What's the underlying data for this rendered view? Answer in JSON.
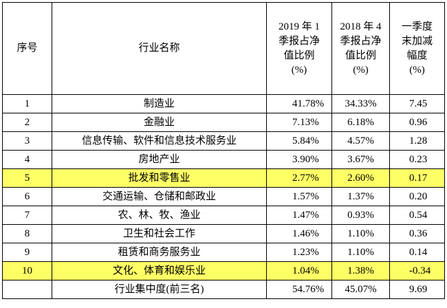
{
  "headers": {
    "seq": "序号",
    "industry": "行业名称",
    "q1_2019": [
      "2019 年 1",
      "季报占净",
      "值比例",
      "(%)"
    ],
    "q4_2018": [
      "2018 年 4",
      "季报占净",
      "值比例",
      "(%)"
    ],
    "change": [
      "一季度",
      "末加减",
      "幅度",
      "(%)"
    ]
  },
  "rows": [
    {
      "seq": "1",
      "industry": "制造业",
      "q1_2019": "41.78%",
      "q4_2018": "34.33%",
      "change": "7.45",
      "highlight": false
    },
    {
      "seq": "2",
      "industry": "金融业",
      "q1_2019": "7.13%",
      "q4_2018": "6.18%",
      "change": "0.96",
      "highlight": false
    },
    {
      "seq": "3",
      "industry": "信息传输、软件和信息技术服务业",
      "q1_2019": "5.84%",
      "q4_2018": "4.57%",
      "change": "1.28",
      "highlight": false
    },
    {
      "seq": "4",
      "industry": "房地产业",
      "q1_2019": "3.90%",
      "q4_2018": "3.67%",
      "change": "0.23",
      "highlight": false
    },
    {
      "seq": "5",
      "industry": "批发和零售业",
      "q1_2019": "2.77%",
      "q4_2018": "2.60%",
      "change": "0.17",
      "highlight": true
    },
    {
      "seq": "6",
      "industry": "交通运输、仓储和邮政业",
      "q1_2019": "1.57%",
      "q4_2018": "1.37%",
      "change": "0.20",
      "highlight": false
    },
    {
      "seq": "7",
      "industry": "农、林、牧、渔业",
      "q1_2019": "1.47%",
      "q4_2018": "0.93%",
      "change": "0.54",
      "highlight": false
    },
    {
      "seq": "8",
      "industry": "卫生和社会工作",
      "q1_2019": "1.46%",
      "q4_2018": "1.10%",
      "change": "0.36",
      "highlight": false
    },
    {
      "seq": "9",
      "industry": "租赁和商务服务业",
      "q1_2019": "1.23%",
      "q4_2018": "1.10%",
      "change": "0.14",
      "highlight": false
    },
    {
      "seq": "10",
      "industry": "文化、体育和娱乐业",
      "q1_2019": "1.04%",
      "q4_2018": "1.38%",
      "change": "-0.34",
      "highlight": true
    }
  ],
  "total": {
    "label": "行业集中度(前三名)",
    "q1_2019": "54.76%",
    "q4_2018": "45.07%",
    "change": "9.69"
  },
  "colors": {
    "highlight": "#ffff66",
    "border": "#000000"
  }
}
